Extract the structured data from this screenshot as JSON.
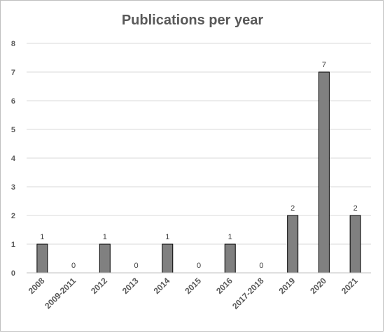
{
  "chart_data": {
    "type": "bar",
    "title": "Publications per year",
    "xlabel": "",
    "ylabel": "",
    "categories": [
      "2008",
      "2009-2011",
      "2012",
      "2013",
      "2014",
      "2015",
      "2016",
      "2017-2018",
      "2019",
      "2020",
      "2021"
    ],
    "values": [
      1,
      0,
      1,
      0,
      1,
      0,
      1,
      0,
      2,
      7,
      2
    ],
    "ylim": [
      0,
      8
    ],
    "yticks": [
      0,
      1,
      2,
      3,
      4,
      5,
      6,
      7,
      8
    ],
    "grid": true,
    "legend": "none",
    "data_labels": true,
    "colors": {
      "bar_fill": "#808080",
      "bar_stroke": "#000000",
      "grid": "#d9d9d9",
      "axis": "#bfbfbf",
      "text": "#595959",
      "label_text": "#404040"
    }
  }
}
